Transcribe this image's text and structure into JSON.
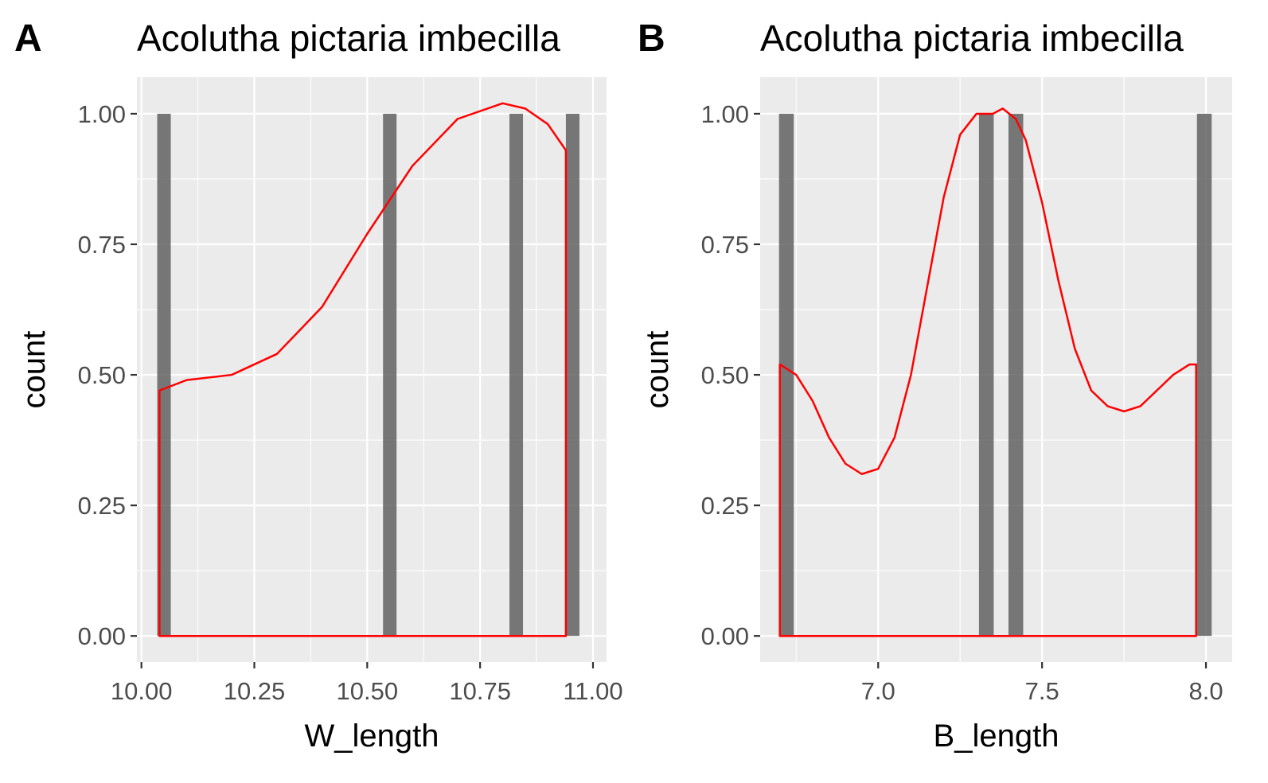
{
  "chart_data": [
    {
      "panel": "A",
      "title": "Acolutha pictaria imbecilla",
      "type": "histogram",
      "xlabel": "W_length",
      "ylabel": "count",
      "xlim": [
        9.99,
        11.03
      ],
      "ylim": [
        -0.05,
        1.07
      ],
      "xticks": [
        10.0,
        10.25,
        10.5,
        10.75,
        11.0
      ],
      "xtick_labels": [
        "10.00",
        "10.25",
        "10.50",
        "10.75",
        "11.00"
      ],
      "yticks": [
        0,
        0.25,
        0.5,
        0.75,
        1.0
      ],
      "ytick_labels": [
        "0.00",
        "0.25",
        "0.50",
        "0.75",
        "1.00"
      ],
      "bar_width": 0.03,
      "bars": [
        {
          "x": 10.05,
          "count": 1
        },
        {
          "x": 10.55,
          "count": 1
        },
        {
          "x": 10.83,
          "count": 1
        },
        {
          "x": 10.955,
          "count": 1
        }
      ],
      "density": {
        "color": "#ff0000",
        "x": [
          10.04,
          10.1,
          10.2,
          10.3,
          10.4,
          10.5,
          10.6,
          10.7,
          10.8,
          10.85,
          10.9,
          10.94
        ],
        "y": [
          0.47,
          0.49,
          0.5,
          0.54,
          0.63,
          0.77,
          0.9,
          0.99,
          1.02,
          1.01,
          0.98,
          0.93
        ]
      },
      "grid": true
    },
    {
      "panel": "B",
      "title": "Acolutha pictaria imbecilla",
      "type": "histogram",
      "xlabel": "B_length",
      "ylabel": "count",
      "xlim": [
        6.64,
        8.08
      ],
      "ylim": [
        -0.05,
        1.07
      ],
      "xticks": [
        7.0,
        7.5,
        8.0
      ],
      "xtick_labels": [
        "7.0",
        "7.5",
        "8.0"
      ],
      "yticks": [
        0,
        0.25,
        0.5,
        0.75,
        1.0
      ],
      "ytick_labels": [
        "0.00",
        "0.25",
        "0.50",
        "0.75",
        "1.00"
      ],
      "bar_width": 0.045,
      "bars": [
        {
          "x": 6.72,
          "count": 1
        },
        {
          "x": 7.33,
          "count": 1
        },
        {
          "x": 7.42,
          "count": 1
        },
        {
          "x": 7.995,
          "count": 1
        }
      ],
      "density": {
        "color": "#ff0000",
        "x": [
          6.7,
          6.75,
          6.8,
          6.85,
          6.9,
          6.95,
          7.0,
          7.05,
          7.1,
          7.15,
          7.2,
          7.25,
          7.3,
          7.35,
          7.38,
          7.42,
          7.45,
          7.5,
          7.55,
          7.6,
          7.65,
          7.7,
          7.75,
          7.8,
          7.85,
          7.9,
          7.95,
          7.97
        ],
        "y": [
          0.52,
          0.5,
          0.45,
          0.38,
          0.33,
          0.31,
          0.32,
          0.38,
          0.5,
          0.67,
          0.84,
          0.96,
          1.0,
          1.0,
          1.01,
          0.99,
          0.95,
          0.83,
          0.68,
          0.55,
          0.47,
          0.44,
          0.43,
          0.44,
          0.47,
          0.5,
          0.52,
          0.52
        ]
      },
      "grid": true
    }
  ]
}
